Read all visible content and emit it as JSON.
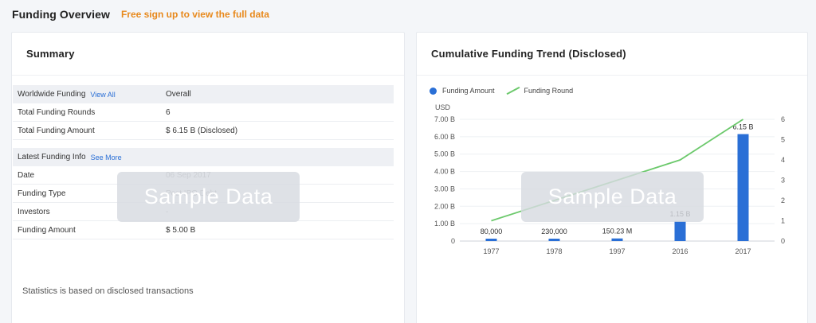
{
  "header": {
    "title": "Funding Overview",
    "signup": "Free sign up to view the full data"
  },
  "summary": {
    "title": "Summary",
    "worldwide": {
      "label": "Worldwide Funding",
      "link": "View All",
      "value": "Overall",
      "rows": [
        {
          "label": "Total Funding Rounds",
          "value": "6"
        },
        {
          "label": "Total Funding Amount",
          "value": "$ 6.15 B (Disclosed)"
        }
      ]
    },
    "latest": {
      "label": "Latest Funding Info",
      "link": "See More",
      "rows": [
        {
          "label": "Date",
          "value": "06 Sep 2017"
        },
        {
          "label": "Funding Type",
          "value": "Post IPO Debt"
        },
        {
          "label": "Investors",
          "value": "-"
        },
        {
          "label": "Funding Amount",
          "value": "$ 5.00 B"
        }
      ]
    },
    "watermark": "Sample Data",
    "note": "Statistics is based on disclosed transactions"
  },
  "trend": {
    "title": "Cumulative Funding Trend (Disclosed)",
    "watermark": "Sample Data"
  },
  "chart_data": {
    "type": "bar",
    "categories": [
      "1977",
      "1978",
      "1997",
      "2016",
      "2017"
    ],
    "ylabel": "USD",
    "ylim": [
      0,
      7
    ],
    "yticks": [
      "0",
      "1.00 B",
      "2.00 B",
      "3.00 B",
      "4.00 B",
      "5.00 B",
      "6.00 B",
      "7.00 B"
    ],
    "y2lim": [
      0,
      6
    ],
    "y2ticks": [
      "0",
      "1",
      "2",
      "3",
      "4",
      "5",
      "6"
    ],
    "legend": [
      "Funding Amount",
      "Funding Round"
    ],
    "series": [
      {
        "name": "Funding Amount",
        "type": "bar",
        "color": "#2a6fd6",
        "values": [
          8e-05,
          0.00023,
          0.15023,
          1.15,
          6.15
        ],
        "labels": [
          "80,000",
          "230,000",
          "150.23 M",
          "1.15 B",
          "6.15 B"
        ]
      },
      {
        "name": "Funding Round",
        "type": "line",
        "color": "#6cc96c",
        "values": [
          1,
          2,
          3,
          4,
          6
        ]
      }
    ]
  }
}
